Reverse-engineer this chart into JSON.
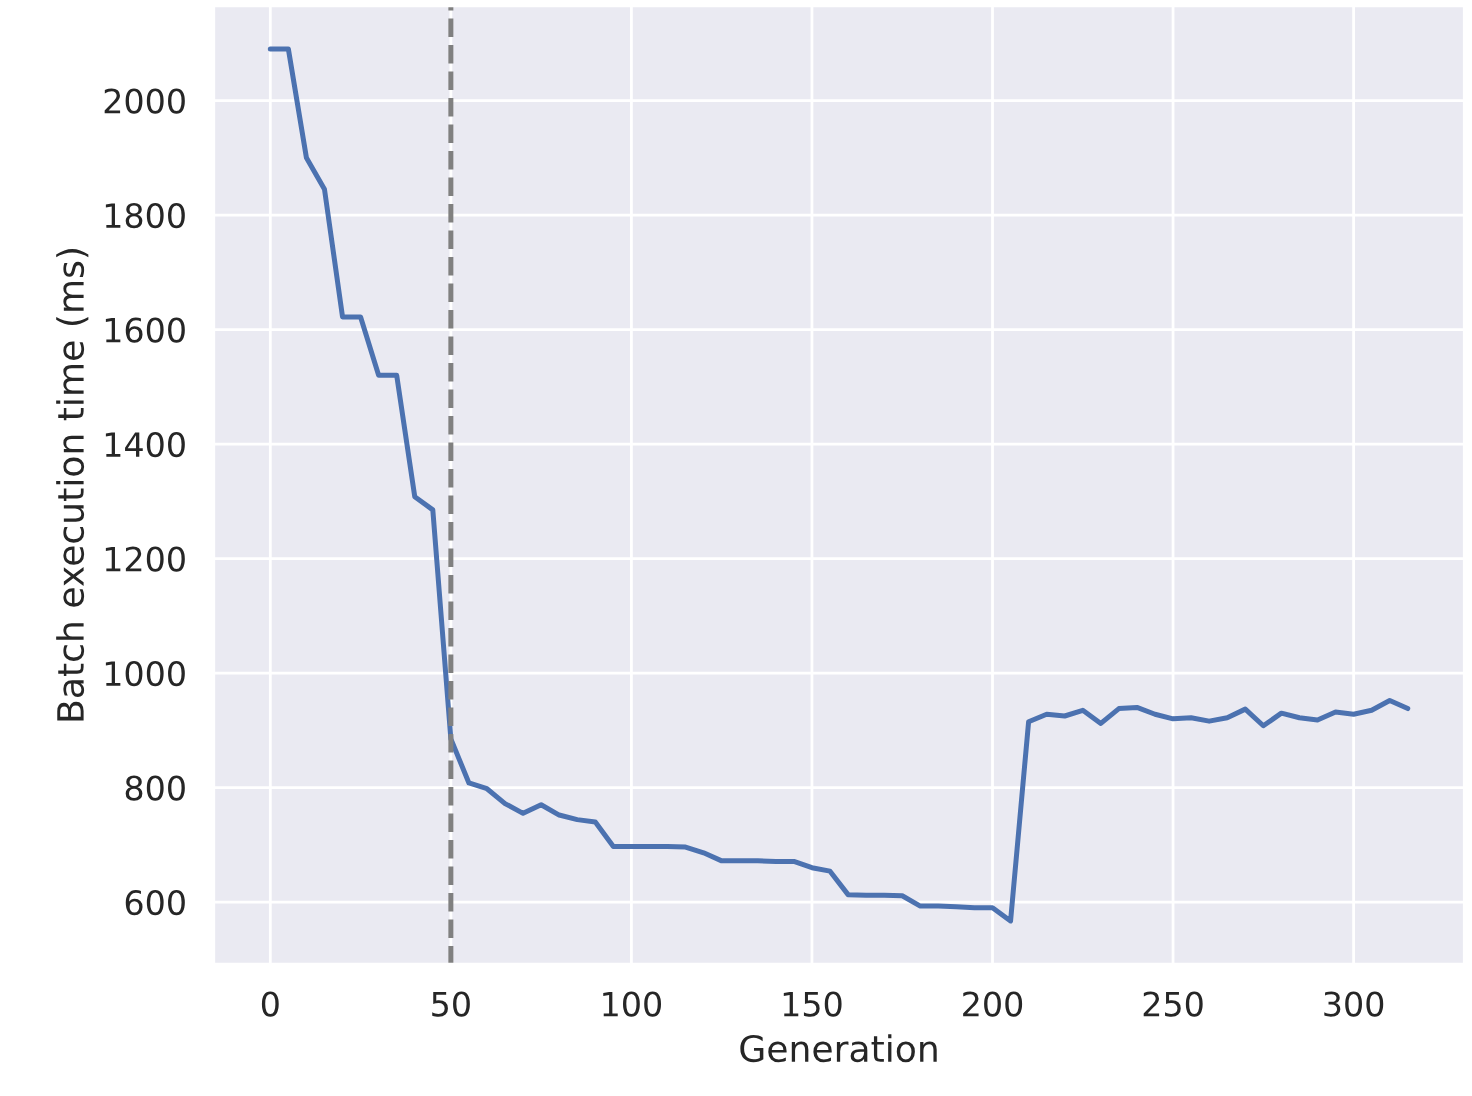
{
  "chart_data": {
    "type": "line",
    "xlabel": "Generation",
    "ylabel": "Batch execution time (ms)",
    "x": [
      0,
      5,
      10,
      15,
      20,
      25,
      30,
      35,
      40,
      45,
      50,
      55,
      60,
      65,
      70,
      75,
      80,
      85,
      90,
      95,
      100,
      105,
      110,
      115,
      120,
      125,
      130,
      135,
      140,
      145,
      150,
      155,
      160,
      165,
      170,
      175,
      180,
      185,
      190,
      195,
      200,
      205,
      210,
      215,
      220,
      225,
      230,
      235,
      240,
      245,
      250,
      255,
      260,
      265,
      270,
      275,
      280,
      285,
      290,
      295,
      300,
      305,
      310,
      315
    ],
    "series": [
      {
        "color": "#4c72b0",
        "values": [
          2090,
          2090,
          1900,
          1845,
          1622,
          1622,
          1520,
          1520,
          1308,
          1285,
          885,
          808,
          798,
          772,
          755,
          770,
          752,
          744,
          740,
          697,
          697,
          697,
          697,
          696,
          686,
          672,
          672,
          672,
          671,
          671,
          660,
          654,
          613,
          612,
          612,
          611,
          593,
          593,
          592,
          590,
          590,
          567,
          915,
          928,
          925,
          935,
          912,
          938,
          940,
          928,
          920,
          922,
          916,
          922,
          937,
          908,
          930,
          922,
          918,
          932,
          928,
          935,
          952,
          938
        ]
      }
    ],
    "xlim": [
      -15.75,
      330.75
    ],
    "ylim": [
      491,
      2166
    ],
    "xticks": [
      0,
      50,
      100,
      150,
      200,
      250,
      300
    ],
    "yticks": [
      600,
      800,
      1000,
      1200,
      1400,
      1600,
      1800,
      2000
    ],
    "ref_lines": [
      {
        "axis": "x",
        "value": 50,
        "color": "#808080",
        "line_style": "dashed"
      }
    ],
    "grid": true,
    "marker": "none",
    "line_style": "solid"
  }
}
